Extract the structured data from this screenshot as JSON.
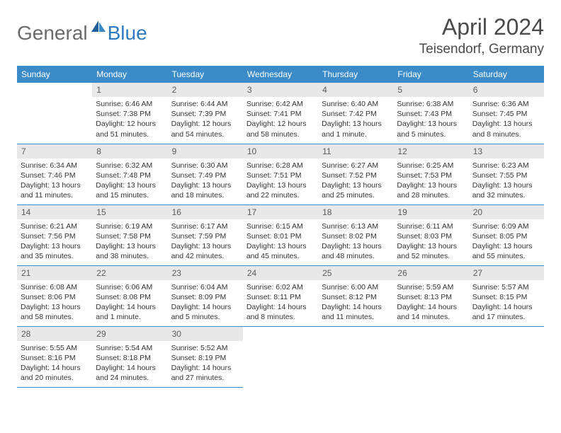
{
  "logo": {
    "general": "General",
    "blue": "Blue"
  },
  "title": "April 2024",
  "location": "Teisendorf, Germany",
  "colors": {
    "header_bg": "#3b8bc9",
    "header_fg": "#ffffff",
    "daynum_bg": "#e8e8e8",
    "daynum_fg": "#5a5a5a",
    "rule": "#3b8bc9",
    "logo_gray": "#6b6b6b",
    "logo_blue": "#2f7ac0",
    "title_fg": "#4a4a4a",
    "body_fg": "#333333"
  },
  "day_headers": [
    "Sunday",
    "Monday",
    "Tuesday",
    "Wednesday",
    "Thursday",
    "Friday",
    "Saturday"
  ],
  "weeks": [
    [
      {
        "num": "",
        "lines": []
      },
      {
        "num": "1",
        "lines": [
          "Sunrise: 6:46 AM",
          "Sunset: 7:38 PM",
          "Daylight: 12 hours",
          "and 51 minutes."
        ]
      },
      {
        "num": "2",
        "lines": [
          "Sunrise: 6:44 AM",
          "Sunset: 7:39 PM",
          "Daylight: 12 hours",
          "and 54 minutes."
        ]
      },
      {
        "num": "3",
        "lines": [
          "Sunrise: 6:42 AM",
          "Sunset: 7:41 PM",
          "Daylight: 12 hours",
          "and 58 minutes."
        ]
      },
      {
        "num": "4",
        "lines": [
          "Sunrise: 6:40 AM",
          "Sunset: 7:42 PM",
          "Daylight: 13 hours",
          "and 1 minute."
        ]
      },
      {
        "num": "5",
        "lines": [
          "Sunrise: 6:38 AM",
          "Sunset: 7:43 PM",
          "Daylight: 13 hours",
          "and 5 minutes."
        ]
      },
      {
        "num": "6",
        "lines": [
          "Sunrise: 6:36 AM",
          "Sunset: 7:45 PM",
          "Daylight: 13 hours",
          "and 8 minutes."
        ]
      }
    ],
    [
      {
        "num": "7",
        "lines": [
          "Sunrise: 6:34 AM",
          "Sunset: 7:46 PM",
          "Daylight: 13 hours",
          "and 11 minutes."
        ]
      },
      {
        "num": "8",
        "lines": [
          "Sunrise: 6:32 AM",
          "Sunset: 7:48 PM",
          "Daylight: 13 hours",
          "and 15 minutes."
        ]
      },
      {
        "num": "9",
        "lines": [
          "Sunrise: 6:30 AM",
          "Sunset: 7:49 PM",
          "Daylight: 13 hours",
          "and 18 minutes."
        ]
      },
      {
        "num": "10",
        "lines": [
          "Sunrise: 6:28 AM",
          "Sunset: 7:51 PM",
          "Daylight: 13 hours",
          "and 22 minutes."
        ]
      },
      {
        "num": "11",
        "lines": [
          "Sunrise: 6:27 AM",
          "Sunset: 7:52 PM",
          "Daylight: 13 hours",
          "and 25 minutes."
        ]
      },
      {
        "num": "12",
        "lines": [
          "Sunrise: 6:25 AM",
          "Sunset: 7:53 PM",
          "Daylight: 13 hours",
          "and 28 minutes."
        ]
      },
      {
        "num": "13",
        "lines": [
          "Sunrise: 6:23 AM",
          "Sunset: 7:55 PM",
          "Daylight: 13 hours",
          "and 32 minutes."
        ]
      }
    ],
    [
      {
        "num": "14",
        "lines": [
          "Sunrise: 6:21 AM",
          "Sunset: 7:56 PM",
          "Daylight: 13 hours",
          "and 35 minutes."
        ]
      },
      {
        "num": "15",
        "lines": [
          "Sunrise: 6:19 AM",
          "Sunset: 7:58 PM",
          "Daylight: 13 hours",
          "and 38 minutes."
        ]
      },
      {
        "num": "16",
        "lines": [
          "Sunrise: 6:17 AM",
          "Sunset: 7:59 PM",
          "Daylight: 13 hours",
          "and 42 minutes."
        ]
      },
      {
        "num": "17",
        "lines": [
          "Sunrise: 6:15 AM",
          "Sunset: 8:01 PM",
          "Daylight: 13 hours",
          "and 45 minutes."
        ]
      },
      {
        "num": "18",
        "lines": [
          "Sunrise: 6:13 AM",
          "Sunset: 8:02 PM",
          "Daylight: 13 hours",
          "and 48 minutes."
        ]
      },
      {
        "num": "19",
        "lines": [
          "Sunrise: 6:11 AM",
          "Sunset: 8:03 PM",
          "Daylight: 13 hours",
          "and 52 minutes."
        ]
      },
      {
        "num": "20",
        "lines": [
          "Sunrise: 6:09 AM",
          "Sunset: 8:05 PM",
          "Daylight: 13 hours",
          "and 55 minutes."
        ]
      }
    ],
    [
      {
        "num": "21",
        "lines": [
          "Sunrise: 6:08 AM",
          "Sunset: 8:06 PM",
          "Daylight: 13 hours",
          "and 58 minutes."
        ]
      },
      {
        "num": "22",
        "lines": [
          "Sunrise: 6:06 AM",
          "Sunset: 8:08 PM",
          "Daylight: 14 hours",
          "and 1 minute."
        ]
      },
      {
        "num": "23",
        "lines": [
          "Sunrise: 6:04 AM",
          "Sunset: 8:09 PM",
          "Daylight: 14 hours",
          "and 5 minutes."
        ]
      },
      {
        "num": "24",
        "lines": [
          "Sunrise: 6:02 AM",
          "Sunset: 8:11 PM",
          "Daylight: 14 hours",
          "and 8 minutes."
        ]
      },
      {
        "num": "25",
        "lines": [
          "Sunrise: 6:00 AM",
          "Sunset: 8:12 PM",
          "Daylight: 14 hours",
          "and 11 minutes."
        ]
      },
      {
        "num": "26",
        "lines": [
          "Sunrise: 5:59 AM",
          "Sunset: 8:13 PM",
          "Daylight: 14 hours",
          "and 14 minutes."
        ]
      },
      {
        "num": "27",
        "lines": [
          "Sunrise: 5:57 AM",
          "Sunset: 8:15 PM",
          "Daylight: 14 hours",
          "and 17 minutes."
        ]
      }
    ],
    [
      {
        "num": "28",
        "lines": [
          "Sunrise: 5:55 AM",
          "Sunset: 8:16 PM",
          "Daylight: 14 hours",
          "and 20 minutes."
        ]
      },
      {
        "num": "29",
        "lines": [
          "Sunrise: 5:54 AM",
          "Sunset: 8:18 PM",
          "Daylight: 14 hours",
          "and 24 minutes."
        ]
      },
      {
        "num": "30",
        "lines": [
          "Sunrise: 5:52 AM",
          "Sunset: 8:19 PM",
          "Daylight: 14 hours",
          "and 27 minutes."
        ]
      },
      {
        "num": "",
        "lines": []
      },
      {
        "num": "",
        "lines": []
      },
      {
        "num": "",
        "lines": []
      },
      {
        "num": "",
        "lines": []
      }
    ]
  ]
}
